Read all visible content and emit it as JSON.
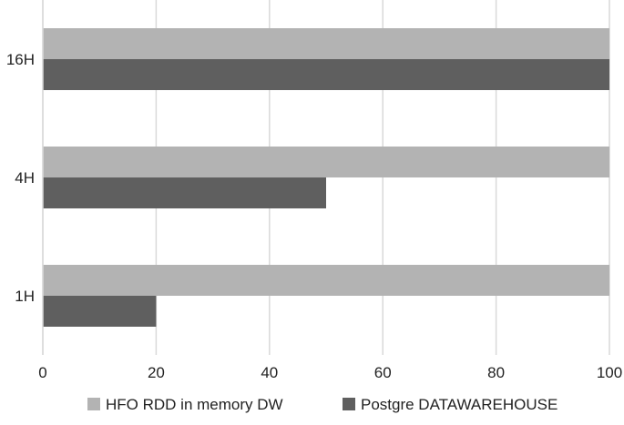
{
  "chart_data": {
    "type": "bar",
    "orientation": "horizontal",
    "categories": [
      "16H",
      "4H",
      "1H"
    ],
    "series": [
      {
        "name": "HFO RDD in memory DW",
        "values": [
          100,
          100,
          100
        ],
        "color": "#b3b3b3"
      },
      {
        "name": "Postgre DATAWAREHOUSE",
        "values": [
          100,
          50,
          20
        ],
        "color": "#5f5f5f"
      }
    ],
    "xlim": [
      0,
      100
    ],
    "xticks": [
      0,
      20,
      40,
      60,
      80,
      100
    ],
    "grid": true,
    "gridColor": "#d9d9d9",
    "legend_position": "bottom"
  }
}
